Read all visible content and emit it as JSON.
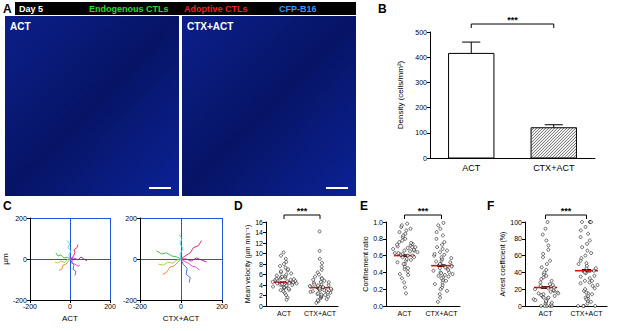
{
  "chart_data": [
    {
      "type": "image",
      "title": "A",
      "annotations": [
        "Day 5"
      ],
      "series": [
        {
          "name": "Endogenous CTLs",
          "color": "#22dd33"
        },
        {
          "name": "Adoptive CTLs",
          "color": "#ee2222"
        },
        {
          "name": "CFP-B16",
          "color": "#3399ff"
        }
      ],
      "categories": [
        "ACT",
        "CTX+ACT"
      ]
    },
    {
      "type": "bar",
      "title": "B",
      "categories": [
        "ACT",
        "CTX+ACT"
      ],
      "values": [
        415,
        120
      ],
      "errors": [
        45,
        12
      ],
      "colors": [
        "#ffffff",
        "#ffffff"
      ],
      "ylabel": "Density (cells/mm²)",
      "ylim": [
        0,
        500
      ],
      "yticks": [
        0,
        100,
        200,
        300,
        400,
        500
      ],
      "annotations": [
        "***"
      ],
      "grid": false
    },
    {
      "type": "tracks",
      "title": "C",
      "xlabel": "ACT",
      "ylabel": "µm",
      "xlim": [
        -200,
        200
      ],
      "ylim": [
        -200,
        200
      ],
      "xticks": [
        -200,
        0,
        200
      ],
      "yticks": [
        -200,
        0,
        200
      ],
      "grid": true,
      "series": [
        {
          "color": "#e6194b",
          "points": [
            [
              0,
              0
            ],
            [
              15,
              10
            ],
            [
              25,
              30
            ],
            [
              20,
              45
            ],
            [
              35,
              55
            ],
            [
              40,
              70
            ]
          ]
        },
        {
          "color": "#3cb44b",
          "points": [
            [
              0,
              0
            ],
            [
              -12,
              8
            ],
            [
              -30,
              5
            ],
            [
              -45,
              20
            ],
            [
              -60,
              15
            ],
            [
              -70,
              30
            ]
          ]
        },
        {
          "color": "#4363d8",
          "points": [
            [
              0,
              0
            ],
            [
              10,
              -15
            ],
            [
              20,
              -30
            ],
            [
              15,
              -50
            ],
            [
              30,
              -60
            ],
            [
              25,
              -80
            ]
          ]
        },
        {
          "color": "#f58231",
          "points": [
            [
              0,
              0
            ],
            [
              -8,
              -12
            ],
            [
              -20,
              -25
            ],
            [
              -35,
              -30
            ],
            [
              -40,
              -50
            ],
            [
              -55,
              -55
            ]
          ]
        },
        {
          "color": "#911eb4",
          "points": [
            [
              0,
              0
            ],
            [
              20,
              5
            ],
            [
              40,
              -5
            ],
            [
              55,
              10
            ],
            [
              70,
              0
            ],
            [
              85,
              -10
            ]
          ]
        },
        {
          "color": "#42d4f4",
          "points": [
            [
              0,
              0
            ],
            [
              -5,
              20
            ],
            [
              5,
              40
            ],
            [
              -10,
              55
            ],
            [
              0,
              75
            ],
            [
              -15,
              90
            ]
          ]
        },
        {
          "color": "#f032e6",
          "points": [
            [
              0,
              0
            ],
            [
              12,
              -5
            ],
            [
              8,
              -20
            ],
            [
              25,
              -25
            ],
            [
              40,
              -35
            ],
            [
              50,
              -30
            ]
          ]
        },
        {
          "color": "#9acd32",
          "points": [
            [
              0,
              0
            ],
            [
              -15,
              -3
            ],
            [
              -25,
              -18
            ],
            [
              -45,
              -10
            ],
            [
              -60,
              -20
            ],
            [
              -75,
              -15
            ]
          ]
        }
      ]
    },
    {
      "type": "tracks",
      "xlabel": "CTX+ACT",
      "xlim": [
        -200,
        200
      ],
      "ylim": [
        -200,
        200
      ],
      "xticks": [
        -200,
        0,
        200
      ],
      "yticks": [
        -200,
        0,
        200
      ],
      "grid": true,
      "series": [
        {
          "color": "#e6194b",
          "points": [
            [
              0,
              0
            ],
            [
              20,
              15
            ],
            [
              45,
              30
            ],
            [
              60,
              55
            ],
            [
              85,
              65
            ],
            [
              100,
              90
            ]
          ]
        },
        {
          "color": "#3cb44b",
          "points": [
            [
              0,
              0
            ],
            [
              -20,
              10
            ],
            [
              -45,
              15
            ],
            [
              -70,
              30
            ],
            [
              -95,
              25
            ],
            [
              -120,
              40
            ]
          ]
        },
        {
          "color": "#4363d8",
          "points": [
            [
              0,
              0
            ],
            [
              10,
              -25
            ],
            [
              30,
              -45
            ],
            [
              25,
              -75
            ],
            [
              45,
              -90
            ],
            [
              40,
              -115
            ]
          ]
        },
        {
          "color": "#f58231",
          "points": [
            [
              0,
              0
            ],
            [
              -15,
              -15
            ],
            [
              -35,
              -35
            ],
            [
              -55,
              -40
            ],
            [
              -70,
              -65
            ],
            [
              -90,
              -75
            ]
          ]
        },
        {
          "color": "#911eb4",
          "points": [
            [
              0,
              0
            ],
            [
              25,
              0
            ],
            [
              50,
              -10
            ],
            [
              75,
              5
            ],
            [
              100,
              -5
            ],
            [
              125,
              -15
            ]
          ]
        },
        {
          "color": "#42d4f4",
          "points": [
            [
              0,
              0
            ],
            [
              -5,
              25
            ],
            [
              10,
              50
            ],
            [
              -5,
              75
            ],
            [
              5,
              100
            ],
            [
              -10,
              120
            ]
          ]
        },
        {
          "color": "#f032e6",
          "points": [
            [
              0,
              0
            ],
            [
              15,
              -10
            ],
            [
              35,
              -20
            ],
            [
              55,
              -35
            ],
            [
              75,
              -40
            ],
            [
              90,
              -55
            ]
          ]
        },
        {
          "color": "#9acd32",
          "points": [
            [
              0,
              0
            ],
            [
              -20,
              -5
            ],
            [
              -40,
              -20
            ],
            [
              -65,
              -15
            ],
            [
              -85,
              -30
            ],
            [
              -110,
              -25
            ]
          ]
        }
      ]
    },
    {
      "type": "scatter",
      "title": "D",
      "categories": [
        "ACT",
        "CTX+ACT"
      ],
      "ylabel": "Mean velocity (µm min⁻¹)",
      "ylim": [
        0,
        16
      ],
      "yticks": [
        0,
        2,
        4,
        6,
        8,
        10,
        12,
        14,
        16
      ],
      "color": "#000000",
      "grid": false,
      "annotations": [
        "***"
      ],
      "means": [
        4.5,
        3.5
      ],
      "sem": [
        0.08,
        0.09
      ],
      "values": [
        [
          2.1,
          2.5,
          2.8,
          3.0,
          3.1,
          3.3,
          3.4,
          3.5,
          3.6,
          3.7,
          3.8,
          3.9,
          4.0,
          4.0,
          4.1,
          4.2,
          4.3,
          4.3,
          4.4,
          4.5,
          4.5,
          4.6,
          4.7,
          4.8,
          4.9,
          5.0,
          5.0,
          5.1,
          5.2,
          5.3,
          5.4,
          5.5,
          5.6,
          5.7,
          5.8,
          6.0,
          6.2,
          6.4,
          6.6,
          6.8,
          7.0,
          7.3,
          7.6,
          8.0,
          8.4,
          9.0,
          9.6,
          10.2,
          1.6,
          1.2
        ],
        [
          0.6,
          0.9,
          1.1,
          1.3,
          1.5,
          1.7,
          1.9,
          2.0,
          2.2,
          2.3,
          2.5,
          2.6,
          2.8,
          2.9,
          3.0,
          3.1,
          3.2,
          3.3,
          3.4,
          3.5,
          3.6,
          3.7,
          3.8,
          3.9,
          4.0,
          4.2,
          4.4,
          4.6,
          4.8,
          5.0,
          5.3,
          5.6,
          6.0,
          6.4,
          6.9,
          7.5,
          8.2,
          9.0,
          10.5,
          14.2,
          2.4,
          2.7,
          3.0,
          3.3,
          1.8,
          4.1,
          4.5,
          5.2,
          2.1,
          3.6
        ]
      ]
    },
    {
      "type": "scatter",
      "title": "E",
      "categories": [
        "ACT",
        "CTX+ACT"
      ],
      "ylabel": "Confinement ratio",
      "ylim": [
        0,
        1
      ],
      "yticks": [
        {
          "value": 0,
          "label": "0.0"
        },
        0.2,
        0.4,
        0.6,
        0.8,
        {
          "value": 1,
          "label": "1.0"
        }
      ],
      "color": "#000000",
      "grid": false,
      "annotations": [
        "***"
      ],
      "means": [
        0.6,
        0.48
      ],
      "sem": [
        0.01,
        0.01
      ],
      "values": [
        [
          0.15,
          0.22,
          0.28,
          0.33,
          0.37,
          0.41,
          0.44,
          0.47,
          0.5,
          0.52,
          0.54,
          0.56,
          0.58,
          0.6,
          0.61,
          0.62,
          0.63,
          0.64,
          0.65,
          0.66,
          0.67,
          0.68,
          0.69,
          0.7,
          0.71,
          0.72,
          0.73,
          0.74,
          0.76,
          0.78,
          0.8,
          0.82,
          0.84,
          0.86,
          0.88,
          0.9,
          0.92,
          0.94,
          0.96,
          0.98,
          0.55,
          0.6,
          0.63,
          0.66,
          0.7,
          0.45,
          0.38,
          0.5,
          0.58,
          0.75
        ],
        [
          0.05,
          0.1,
          0.14,
          0.18,
          0.22,
          0.25,
          0.28,
          0.31,
          0.34,
          0.36,
          0.38,
          0.4,
          0.42,
          0.44,
          0.46,
          0.48,
          0.5,
          0.52,
          0.54,
          0.56,
          0.58,
          0.6,
          0.62,
          0.64,
          0.66,
          0.68,
          0.7,
          0.73,
          0.76,
          0.8,
          0.84,
          0.88,
          0.92,
          0.96,
          0.99,
          0.3,
          0.35,
          0.4,
          0.45,
          0.5,
          0.2,
          0.26,
          0.33,
          0.39,
          0.47,
          0.53,
          0.57,
          0.61,
          0.43,
          0.37
        ]
      ]
    },
    {
      "type": "scatter",
      "title": "F",
      "categories": [
        "ACT",
        "CTX+ACT"
      ],
      "ylabel": "Arrest coefficient (%)",
      "ylim": [
        0,
        100
      ],
      "yticks": [
        0,
        20,
        40,
        60,
        80,
        100
      ],
      "color": "#000000",
      "grid": false,
      "annotations": [
        "***"
      ],
      "means": [
        22,
        42
      ],
      "sem": [
        1.0,
        1.4
      ],
      "values": [
        [
          0,
          0,
          0,
          0,
          0,
          2,
          3,
          5,
          6,
          8,
          9,
          10,
          11,
          12,
          13,
          14,
          15,
          16,
          17,
          18,
          19,
          20,
          21,
          22,
          24,
          26,
          28,
          30,
          32,
          34,
          36,
          38,
          40,
          43,
          46,
          50,
          54,
          58,
          62,
          67,
          72,
          78,
          85,
          92,
          100,
          4,
          7,
          10,
          15,
          25
        ],
        [
          0,
          0,
          0,
          0,
          3,
          6,
          9,
          12,
          15,
          18,
          21,
          24,
          27,
          30,
          33,
          36,
          39,
          42,
          45,
          48,
          51,
          54,
          57,
          60,
          63,
          66,
          70,
          74,
          78,
          82,
          86,
          90,
          94,
          100,
          100,
          100,
          100,
          10,
          20,
          30,
          40,
          50,
          8,
          16,
          25,
          35,
          45,
          5,
          14,
          28
        ]
      ]
    }
  ]
}
